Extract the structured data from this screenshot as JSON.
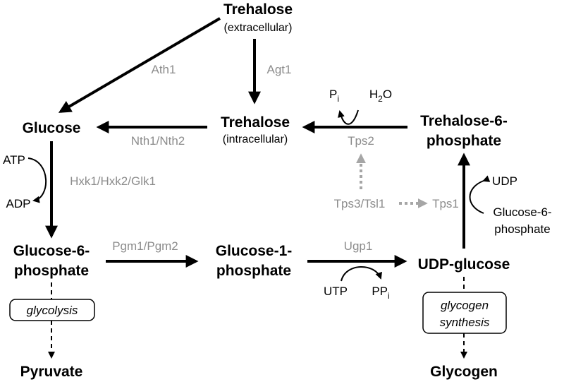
{
  "metabolites": {
    "trehalose_ext": "Trehalose",
    "trehalose_ext_loc": "(extracellular)",
    "trehalose_int": "Trehalose",
    "trehalose_int_loc": "(intracellular)",
    "glucose": "Glucose",
    "g6p_line1": "Glucose-6-",
    "g6p_line2": "phosphate",
    "g1p_line1": "Glucose-1-",
    "g1p_line2": "phosphate",
    "udp_glucose": "UDP-glucose",
    "t6p_line1": "Trehalose-6-",
    "t6p_line2": "phosphate",
    "pyruvate": "Pyruvate",
    "glycogen": "Glycogen"
  },
  "enzymes": {
    "ath1": "Ath1",
    "agt1": "Agt1",
    "nth": "Nth1/Nth2",
    "tps2": "Tps2",
    "hxk": "Hxk1/Hxk2/Glk1",
    "tps3_tsl1": "Tps3/Tsl1",
    "tps1": "Tps1",
    "pgm": "Pgm1/Pgm2",
    "ugp1": "Ugp1"
  },
  "cofactors": {
    "atp": "ATP",
    "adp": "ADP",
    "pi_main": "P",
    "pi_sub": "i",
    "h2o_a": "H",
    "h2o_sub": "2",
    "h2o_b": "O",
    "udp": "UDP",
    "g6p_cof_line1": "Glucose-6-",
    "g6p_cof_line2": "phosphate",
    "utp": "UTP",
    "ppi_main": "PP",
    "ppi_sub": "i"
  },
  "processes": {
    "glycolysis": "glycolysis",
    "glycogen_synth_line1": "glycogen",
    "glycogen_synth_line2": "synthesis"
  },
  "colors": {
    "main_arrow": "#000000",
    "enzyme_text": "#8c8c8c",
    "regulation_arrow": "#a6a6a6"
  }
}
